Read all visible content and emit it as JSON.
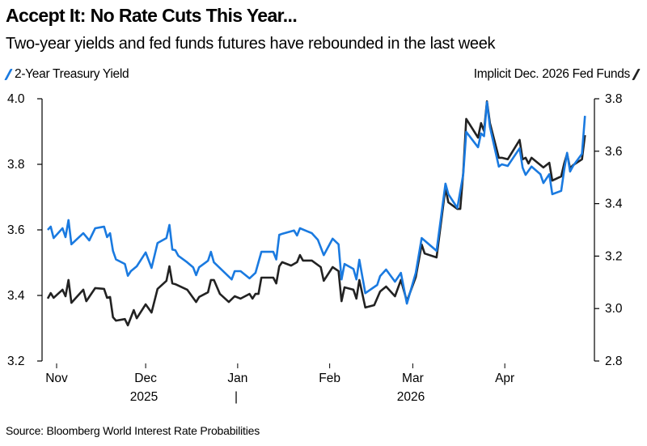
{
  "chart_data": {
    "type": "line",
    "title": "Accept It: No Rate Cuts This Year...",
    "subtitle": "Two-year yields and fed funds futures have rebounded in the last week",
    "source": "Source: Bloomberg World Interest Rate Probabilities",
    "x_ticks": [
      "Nov",
      "Dec",
      "Jan",
      "Feb",
      "Mar",
      "Apr"
    ],
    "x_tick_dates": [
      "2025-11-01",
      "2025-12-01",
      "2026-01-01",
      "2026-02-01",
      "2026-03-01",
      "2026-04-01"
    ],
    "year_labels": [
      "2025",
      "|",
      "2026"
    ],
    "left_axis": {
      "ticks": [
        "4.0",
        "3.8",
        "3.6",
        "3.4",
        "3.2"
      ],
      "ylim": [
        3.2,
        4.0
      ]
    },
    "right_axis": {
      "ticks": [
        "3.8",
        "3.6",
        "3.4",
        "3.2",
        "3.0",
        "2.8"
      ],
      "ylim": [
        2.8,
        3.8
      ]
    },
    "grid": false,
    "legend": {
      "left": "top-left",
      "right": "top-right"
    },
    "series": [
      {
        "name": "2-Year Treasury Yield",
        "axis": "left",
        "color": "#1a7ae0",
        "points": [
          [
            "2025-10-29",
            3.6
          ],
          [
            "2025-10-30",
            3.61
          ],
          [
            "2025-10-31",
            3.575
          ],
          [
            "2025-11-03",
            3.605
          ],
          [
            "2025-11-04",
            3.578
          ],
          [
            "2025-11-05",
            3.63
          ],
          [
            "2025-11-06",
            3.556
          ],
          [
            "2025-11-10",
            3.59
          ],
          [
            "2025-11-12",
            3.568
          ],
          [
            "2025-11-14",
            3.605
          ],
          [
            "2025-11-17",
            3.61
          ],
          [
            "2025-11-18",
            3.578
          ],
          [
            "2025-11-19",
            3.59
          ],
          [
            "2025-11-20",
            3.536
          ],
          [
            "2025-11-21",
            3.51
          ],
          [
            "2025-11-24",
            3.496
          ],
          [
            "2025-11-25",
            3.46
          ],
          [
            "2025-11-26",
            3.474
          ],
          [
            "2025-11-28",
            3.489
          ],
          [
            "2025-12-01",
            3.531
          ],
          [
            "2025-12-03",
            3.484
          ],
          [
            "2025-12-05",
            3.56
          ],
          [
            "2025-12-08",
            3.575
          ],
          [
            "2025-12-09",
            3.615
          ],
          [
            "2025-12-10",
            3.54
          ],
          [
            "2025-12-11",
            3.538
          ],
          [
            "2025-12-12",
            3.521
          ],
          [
            "2025-12-15",
            3.501
          ],
          [
            "2025-12-17",
            3.486
          ],
          [
            "2025-12-18",
            3.462
          ],
          [
            "2025-12-19",
            3.486
          ],
          [
            "2025-12-22",
            3.506
          ],
          [
            "2025-12-23",
            3.533
          ],
          [
            "2025-12-24",
            3.501
          ],
          [
            "2025-12-30",
            3.449
          ],
          [
            "2025-12-31",
            3.474
          ],
          [
            "2026-01-02",
            3.474
          ],
          [
            "2026-01-05",
            3.452
          ],
          [
            "2026-01-07",
            3.469
          ],
          [
            "2026-01-09",
            3.533
          ],
          [
            "2026-01-13",
            3.533
          ],
          [
            "2026-01-14",
            3.51
          ],
          [
            "2026-01-15",
            3.585
          ],
          [
            "2026-01-16",
            3.588
          ],
          [
            "2026-01-20",
            3.598
          ],
          [
            "2026-01-21",
            3.583
          ],
          [
            "2026-01-22",
            3.605
          ],
          [
            "2026-01-26",
            3.59
          ],
          [
            "2026-01-28",
            3.57
          ],
          [
            "2026-01-30",
            3.523
          ],
          [
            "2026-02-02",
            3.573
          ],
          [
            "2026-02-04",
            3.556
          ],
          [
            "2026-02-05",
            3.449
          ],
          [
            "2026-02-06",
            3.496
          ],
          [
            "2026-02-09",
            3.481
          ],
          [
            "2026-02-10",
            3.449
          ],
          [
            "2026-02-11",
            3.509
          ],
          [
            "2026-02-13",
            3.407
          ],
          [
            "2026-02-17",
            3.432
          ],
          [
            "2026-02-18",
            3.459
          ],
          [
            "2026-02-20",
            3.479
          ],
          [
            "2026-02-23",
            3.442
          ],
          [
            "2026-02-25",
            3.469
          ],
          [
            "2026-02-27",
            3.375
          ],
          [
            "2026-03-02",
            3.469
          ],
          [
            "2026-03-04",
            3.575
          ],
          [
            "2026-03-09",
            3.536
          ],
          [
            "2026-03-12",
            3.741
          ],
          [
            "2026-03-13",
            3.709
          ],
          [
            "2026-03-16",
            3.667
          ],
          [
            "2026-03-18",
            3.77
          ],
          [
            "2026-03-19",
            3.899
          ],
          [
            "2026-03-23",
            3.852
          ],
          [
            "2026-03-24",
            3.894
          ],
          [
            "2026-03-25",
            3.886
          ],
          [
            "2026-03-26",
            3.99
          ],
          [
            "2026-03-27",
            3.914
          ],
          [
            "2026-03-30",
            3.793
          ],
          [
            "2026-03-31",
            3.8
          ],
          [
            "2026-04-02",
            3.795
          ],
          [
            "2026-04-06",
            3.849
          ],
          [
            "2026-04-07",
            3.79
          ],
          [
            "2026-04-08",
            3.768
          ],
          [
            "2026-04-10",
            3.793
          ],
          [
            "2026-04-13",
            3.77
          ],
          [
            "2026-04-14",
            3.743
          ],
          [
            "2026-04-16",
            3.77
          ],
          [
            "2026-04-17",
            3.709
          ],
          [
            "2026-04-20",
            3.719
          ],
          [
            "2026-04-21",
            3.783
          ],
          [
            "2026-04-22",
            3.835
          ],
          [
            "2026-04-23",
            3.778
          ],
          [
            "2026-04-24",
            3.795
          ],
          [
            "2026-04-27",
            3.832
          ],
          [
            "2026-04-28",
            3.948
          ]
        ]
      },
      {
        "name": "Implicit Dec. 2026 Fed Funds",
        "axis": "right",
        "color": "#222222",
        "points": [
          [
            "2025-10-29",
            3.038
          ],
          [
            "2025-10-30",
            3.059
          ],
          [
            "2025-10-31",
            3.041
          ],
          [
            "2025-11-03",
            3.072
          ],
          [
            "2025-11-04",
            3.047
          ],
          [
            "2025-11-05",
            3.109
          ],
          [
            "2025-11-06",
            3.022
          ],
          [
            "2025-11-10",
            3.072
          ],
          [
            "2025-11-11",
            3.028
          ],
          [
            "2025-11-14",
            3.078
          ],
          [
            "2025-11-17",
            3.075
          ],
          [
            "2025-11-18",
            3.041
          ],
          [
            "2025-11-19",
            3.044
          ],
          [
            "2025-11-20",
            2.967
          ],
          [
            "2025-11-21",
            2.954
          ],
          [
            "2025-11-24",
            2.96
          ],
          [
            "2025-11-25",
            2.936
          ],
          [
            "2025-11-27",
            2.994
          ],
          [
            "2025-11-28",
            2.963
          ],
          [
            "2025-12-01",
            3.016
          ],
          [
            "2025-12-03",
            2.985
          ],
          [
            "2025-12-05",
            3.075
          ],
          [
            "2025-12-08",
            3.106
          ],
          [
            "2025-12-09",
            3.161
          ],
          [
            "2025-12-10",
            3.096
          ],
          [
            "2025-12-11",
            3.093
          ],
          [
            "2025-12-15",
            3.072
          ],
          [
            "2025-12-18",
            3.025
          ],
          [
            "2025-12-19",
            3.044
          ],
          [
            "2025-12-22",
            3.062
          ],
          [
            "2025-12-23",
            3.109
          ],
          [
            "2025-12-24",
            3.109
          ],
          [
            "2025-12-26",
            3.056
          ],
          [
            "2025-12-29",
            3.025
          ],
          [
            "2025-12-31",
            3.047
          ],
          [
            "2026-01-02",
            3.038
          ],
          [
            "2026-01-05",
            3.056
          ],
          [
            "2026-01-06",
            3.038
          ],
          [
            "2026-01-07",
            3.056
          ],
          [
            "2026-01-08",
            3.056
          ],
          [
            "2026-01-09",
            3.118
          ],
          [
            "2026-01-13",
            3.118
          ],
          [
            "2026-01-14",
            3.096
          ],
          [
            "2026-01-15",
            3.161
          ],
          [
            "2026-01-16",
            3.177
          ],
          [
            "2026-01-19",
            3.164
          ],
          [
            "2026-01-21",
            3.177
          ],
          [
            "2026-01-22",
            3.204
          ],
          [
            "2026-01-23",
            3.183
          ],
          [
            "2026-01-26",
            3.183
          ],
          [
            "2026-01-29",
            3.158
          ],
          [
            "2026-01-30",
            3.106
          ],
          [
            "2026-02-02",
            3.158
          ],
          [
            "2026-02-04",
            3.143
          ],
          [
            "2026-02-05",
            3.028
          ],
          [
            "2026-02-06",
            3.081
          ],
          [
            "2026-02-09",
            3.072
          ],
          [
            "2026-02-10",
            3.038
          ],
          [
            "2026-02-11",
            3.109
          ],
          [
            "2026-02-13",
            3.004
          ],
          [
            "2026-02-16",
            3.013
          ],
          [
            "2026-02-18",
            3.065
          ],
          [
            "2026-02-20",
            3.084
          ],
          [
            "2026-02-23",
            3.047
          ],
          [
            "2026-02-25",
            3.109
          ],
          [
            "2026-02-27",
            3.028
          ],
          [
            "2026-03-02",
            3.12
          ],
          [
            "2026-03-04",
            3.244
          ],
          [
            "2026-03-05",
            3.21
          ],
          [
            "2026-03-09",
            3.195
          ],
          [
            "2026-03-12",
            3.46
          ],
          [
            "2026-03-13",
            3.405
          ],
          [
            "2026-03-16",
            3.38
          ],
          [
            "2026-03-17",
            3.38
          ],
          [
            "2026-03-18",
            3.519
          ],
          [
            "2026-03-19",
            3.723
          ],
          [
            "2026-03-23",
            3.652
          ],
          [
            "2026-03-24",
            3.707
          ],
          [
            "2026-03-25",
            3.677
          ],
          [
            "2026-03-26",
            3.79
          ],
          [
            "2026-03-27",
            3.707
          ],
          [
            "2026-03-30",
            3.575
          ],
          [
            "2026-03-31",
            3.575
          ],
          [
            "2026-04-02",
            3.569
          ],
          [
            "2026-04-06",
            3.643
          ],
          [
            "2026-04-07",
            3.569
          ],
          [
            "2026-04-08",
            3.575
          ],
          [
            "2026-04-09",
            3.553
          ],
          [
            "2026-04-10",
            3.575
          ],
          [
            "2026-04-14",
            3.538
          ],
          [
            "2026-04-16",
            3.556
          ],
          [
            "2026-04-17",
            3.488
          ],
          [
            "2026-04-20",
            3.504
          ],
          [
            "2026-04-21",
            3.553
          ],
          [
            "2026-04-22",
            3.59
          ],
          [
            "2026-04-23",
            3.535
          ],
          [
            "2026-04-24",
            3.547
          ],
          [
            "2026-04-27",
            3.569
          ],
          [
            "2026-04-28",
            3.661
          ]
        ]
      }
    ]
  }
}
